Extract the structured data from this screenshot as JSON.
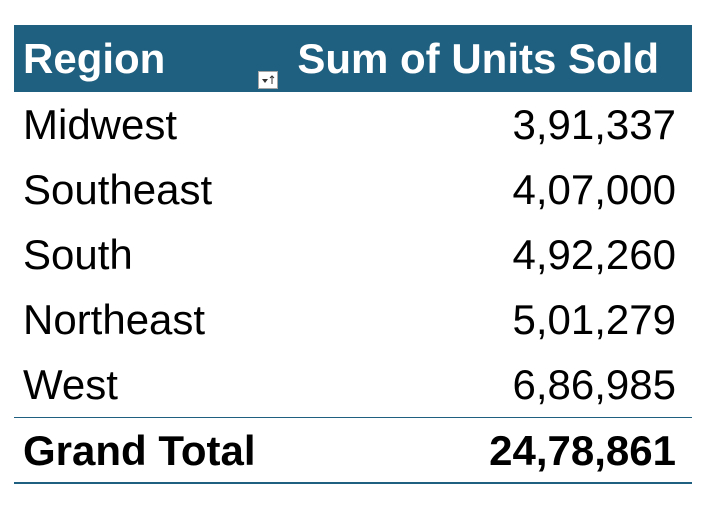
{
  "colors": {
    "header_bg": "#1f5f7f",
    "header_text": "#ffffff",
    "border": "#1f5f7f"
  },
  "pivot": {
    "header": {
      "region_label": "Region",
      "sum_label": "Sum of Units Sold",
      "filter_icon": "sort-filter-dropdown-icon"
    },
    "rows": [
      {
        "region": "Midwest",
        "value": "3,91,337"
      },
      {
        "region": "Southeast",
        "value": "4,07,000"
      },
      {
        "region": "South",
        "value": "4,92,260"
      },
      {
        "region": "Northeast",
        "value": "5,01,279"
      },
      {
        "region": "West",
        "value": "6,86,985"
      }
    ],
    "total": {
      "label": "Grand Total",
      "value": "24,78,861"
    }
  }
}
